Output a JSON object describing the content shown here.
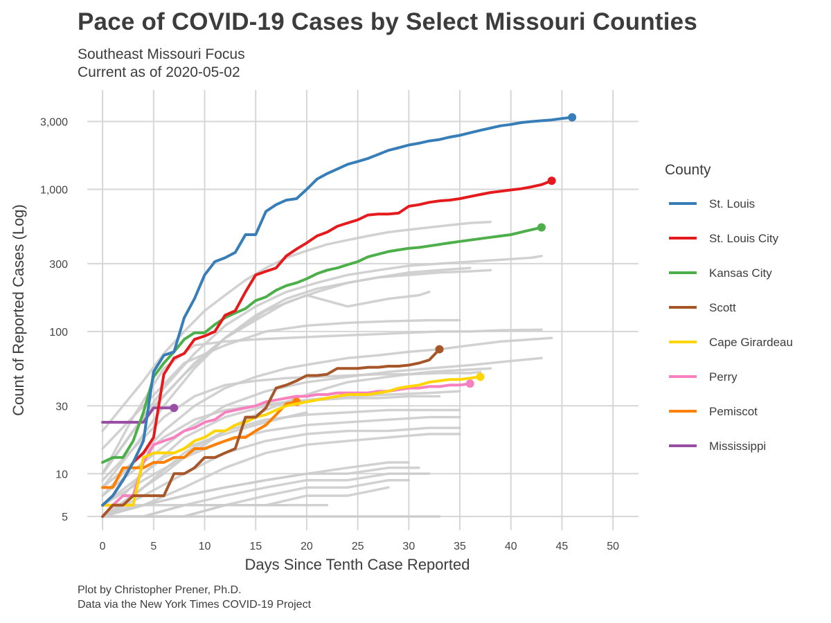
{
  "header": {
    "title": "Pace of COVID-19 Cases by Select Missouri Counties",
    "subtitle_line1": "Southeast Missouri Focus",
    "subtitle_line2": "Current as of 2020-05-02"
  },
  "footer": {
    "caption_line1": "Plot by Christopher Prener, Ph.D.",
    "caption_line2": "Data via the New York Times COVID-19 Project"
  },
  "colors": {
    "background_lines": "#cccccc",
    "grid": "#d6d6d6"
  },
  "chart_data": {
    "type": "line",
    "title": "Pace of COVID-19 Cases by Select Missouri Counties",
    "xlabel": "Days Since Tenth Case Reported",
    "ylabel": "Count of Reported Cases (Log)",
    "yscale": "log",
    "xlim": [
      -1.5,
      52.5
    ],
    "ylim": [
      4,
      5000
    ],
    "x_ticks": [
      0,
      5,
      10,
      15,
      20,
      25,
      30,
      35,
      40,
      45,
      50
    ],
    "x_tick_labels": [
      "0",
      "5",
      "10",
      "15",
      "20",
      "25",
      "30",
      "35",
      "40",
      "45",
      "50"
    ],
    "y_ticks": [
      5,
      10,
      30,
      100,
      300,
      1000,
      3000
    ],
    "y_tick_labels": [
      "5",
      "10",
      "30",
      "100",
      "300",
      "1,000",
      "3,000"
    ],
    "legend_title": "County",
    "series": [
      {
        "name": "St. Louis",
        "color": "#377eb8",
        "x": [
          0,
          1,
          2,
          3,
          4,
          5,
          6,
          7,
          8,
          9,
          10,
          11,
          12,
          13,
          14,
          15,
          16,
          17,
          18,
          19,
          20,
          21,
          22,
          23,
          24,
          25,
          26,
          27,
          28,
          29,
          30,
          31,
          32,
          33,
          34,
          35,
          36,
          37,
          38,
          39,
          40,
          41,
          42,
          43,
          44,
          45,
          46
        ],
        "y": [
          6,
          7,
          9,
          12,
          17,
          52,
          68,
          72,
          125,
          170,
          250,
          310,
          330,
          360,
          480,
          480,
          700,
          780,
          840,
          860,
          1000,
          1180,
          1290,
          1390,
          1500,
          1570,
          1650,
          1760,
          1880,
          1960,
          2050,
          2110,
          2190,
          2240,
          2330,
          2400,
          2500,
          2600,
          2700,
          2800,
          2860,
          2950,
          3000,
          3040,
          3080,
          3150,
          3210
        ]
      },
      {
        "name": "St. Louis City",
        "color": "#e41a1c",
        "x": [
          0,
          1,
          2,
          3,
          4,
          5,
          6,
          7,
          8,
          9,
          10,
          11,
          12,
          13,
          14,
          15,
          16,
          17,
          18,
          19,
          20,
          21,
          22,
          23,
          24,
          25,
          26,
          27,
          28,
          29,
          30,
          31,
          32,
          33,
          34,
          35,
          36,
          37,
          38,
          39,
          40,
          41,
          42,
          43,
          44
        ],
        "y": [
          6,
          7,
          9,
          12,
          14,
          18,
          50,
          65,
          70,
          88,
          93,
          100,
          130,
          140,
          190,
          250,
          265,
          280,
          340,
          380,
          420,
          470,
          500,
          550,
          580,
          610,
          660,
          670,
          670,
          680,
          760,
          780,
          810,
          830,
          840,
          860,
          890,
          920,
          950,
          970,
          990,
          1010,
          1040,
          1080,
          1150
        ]
      },
      {
        "name": "Kansas City",
        "color": "#4daf4a",
        "x": [
          0,
          1,
          2,
          3,
          4,
          5,
          6,
          7,
          8,
          9,
          10,
          11,
          12,
          13,
          14,
          15,
          16,
          17,
          18,
          19,
          20,
          21,
          22,
          23,
          24,
          25,
          26,
          27,
          28,
          29,
          30,
          31,
          32,
          33,
          34,
          35,
          36,
          37,
          38,
          39,
          40,
          41,
          42,
          43
        ],
        "y": [
          12,
          13,
          13,
          17,
          27,
          48,
          60,
          72,
          88,
          98,
          98,
          112,
          125,
          135,
          145,
          165,
          175,
          195,
          210,
          220,
          235,
          255,
          270,
          280,
          295,
          310,
          335,
          350,
          365,
          375,
          385,
          390,
          400,
          410,
          420,
          430,
          440,
          450,
          460,
          470,
          480,
          500,
          520,
          540
        ]
      },
      {
        "name": "Scott",
        "color": "#a65628",
        "x": [
          0,
          1,
          2,
          3,
          4,
          5,
          6,
          7,
          8,
          9,
          10,
          11,
          12,
          13,
          14,
          15,
          16,
          17,
          18,
          19,
          20,
          21,
          22,
          23,
          24,
          25,
          26,
          27,
          28,
          29,
          30,
          31,
          32,
          33
        ],
        "y": [
          5,
          6,
          6,
          7,
          7,
          7,
          7,
          10,
          10,
          11,
          13,
          13,
          14,
          15,
          25,
          25,
          29,
          40,
          42,
          45,
          49,
          49,
          50,
          55,
          55,
          55,
          56,
          56,
          57,
          57,
          58,
          60,
          63,
          75
        ]
      },
      {
        "name": "Cape Girardeau",
        "color": "#ffd500",
        "x": [
          0,
          1,
          2,
          3,
          4,
          5,
          6,
          7,
          8,
          9,
          10,
          11,
          12,
          13,
          14,
          15,
          16,
          17,
          18,
          19,
          20,
          21,
          22,
          23,
          24,
          25,
          26,
          27,
          28,
          29,
          30,
          31,
          32,
          33,
          34,
          35,
          36,
          37
        ],
        "y": [
          6,
          6,
          6,
          6,
          13,
          14,
          14,
          14,
          15,
          17,
          18,
          20,
          20,
          22,
          23,
          25,
          26,
          28,
          30,
          31,
          32,
          33,
          34,
          35,
          36,
          36,
          36,
          37,
          38,
          40,
          41,
          42,
          44,
          45,
          46,
          46,
          47,
          48
        ]
      },
      {
        "name": "Perry",
        "color": "#f781bf",
        "x": [
          0,
          1,
          2,
          3,
          4,
          5,
          6,
          7,
          8,
          9,
          10,
          11,
          12,
          13,
          14,
          15,
          16,
          17,
          18,
          19,
          20,
          21,
          22,
          23,
          24,
          25,
          26,
          27,
          28,
          29,
          30,
          31,
          32,
          33,
          34,
          35,
          36
        ],
        "y": [
          6,
          6,
          7,
          7,
          12,
          16,
          17,
          18,
          20,
          21,
          23,
          24,
          27,
          28,
          29,
          30,
          32,
          33,
          34,
          35,
          35,
          36,
          36,
          37,
          37,
          37,
          37,
          38,
          38,
          39,
          40,
          40,
          41,
          41,
          42,
          42,
          43
        ]
      },
      {
        "name": "Pemiscot",
        "color": "#ff7f00",
        "x": [
          0,
          1,
          2,
          3,
          4,
          5,
          6,
          7,
          8,
          9,
          10,
          11,
          12,
          13,
          14,
          15,
          16,
          17,
          18,
          19
        ],
        "y": [
          8,
          8,
          11,
          11,
          11,
          12,
          12,
          13,
          13,
          15,
          15,
          16,
          17,
          18,
          18,
          20,
          22,
          26,
          31,
          32
        ]
      },
      {
        "name": "Mississippi",
        "color": "#984ea3",
        "x": [
          0,
          1,
          2,
          3,
          4,
          5,
          6,
          7
        ],
        "y": [
          23,
          23,
          23,
          23,
          23,
          29,
          29,
          29
        ]
      }
    ],
    "background_series": [
      {
        "x": [
          0,
          2,
          4,
          6,
          8,
          10,
          12,
          14,
          16,
          18,
          20,
          22,
          24,
          26,
          28,
          30,
          32,
          34,
          36,
          38
        ],
        "y": [
          20,
          30,
          45,
          70,
          100,
          140,
          180,
          230,
          280,
          330,
          370,
          410,
          440,
          470,
          500,
          520,
          540,
          560,
          580,
          590
        ]
      },
      {
        "x": [
          0,
          3,
          6,
          9,
          12,
          15,
          18,
          21,
          24,
          27,
          30,
          33,
          36,
          39,
          42,
          43
        ],
        "y": [
          10,
          20,
          40,
          70,
          110,
          150,
          190,
          220,
          250,
          270,
          290,
          300,
          310,
          320,
          330,
          340
        ]
      },
      {
        "x": [
          0,
          3,
          6,
          9,
          12,
          15,
          18,
          21,
          24,
          27,
          30,
          33,
          36,
          38
        ],
        "y": [
          9,
          15,
          30,
          55,
          90,
          130,
          170,
          200,
          220,
          240,
          250,
          260,
          265,
          270
        ]
      },
      {
        "x": [
          0,
          3,
          6,
          9,
          12,
          15,
          18,
          21,
          24,
          27,
          30,
          33,
          36
        ],
        "y": [
          10,
          20,
          35,
          60,
          90,
          120,
          160,
          190,
          220,
          240,
          260,
          270,
          280
        ]
      },
      {
        "x": [
          0,
          4,
          8,
          12,
          16,
          20,
          24,
          28,
          31,
          32
        ],
        "y": [
          10,
          25,
          50,
          90,
          140,
          180,
          150,
          170,
          180,
          190
        ]
      },
      {
        "x": [
          0,
          4,
          8,
          12,
          16,
          20,
          24,
          28,
          32,
          35
        ],
        "y": [
          15,
          30,
          60,
          80,
          100,
          110,
          115,
          118,
          120,
          120
        ]
      },
      {
        "x": [
          0,
          3,
          6,
          9,
          12,
          15,
          18,
          21,
          24,
          27,
          30,
          33,
          36,
          39,
          43
        ],
        "y": [
          10,
          25,
          55,
          80,
          85,
          88,
          90,
          92,
          94,
          96,
          98,
          100,
          100,
          102,
          103
        ]
      },
      {
        "x": [
          0,
          3,
          6,
          9,
          12,
          15,
          18,
          21,
          24,
          27,
          30,
          33,
          36,
          39,
          42,
          44
        ],
        "y": [
          8,
          12,
          20,
          30,
          40,
          48,
          55,
          60,
          65,
          68,
          72,
          75,
          80,
          85,
          88,
          90
        ]
      },
      {
        "x": [
          0,
          4,
          8,
          12,
          16,
          20,
          24,
          28,
          32,
          36,
          40,
          43
        ],
        "y": [
          7,
          12,
          20,
          30,
          38,
          44,
          48,
          52,
          55,
          58,
          62,
          65
        ]
      },
      {
        "x": [
          0,
          3,
          6,
          9,
          12,
          15,
          18,
          21,
          24,
          27,
          30,
          33,
          36,
          37
        ],
        "y": [
          8,
          15,
          25,
          35,
          42,
          45,
          47,
          48,
          49,
          50,
          50,
          51,
          51,
          52
        ]
      },
      {
        "x": [
          0,
          4,
          8,
          12,
          16,
          20,
          24,
          28,
          32,
          35
        ],
        "y": [
          6,
          10,
          18,
          25,
          30,
          33,
          35,
          36,
          37,
          38
        ]
      },
      {
        "x": [
          0,
          3,
          6,
          9,
          12,
          15,
          18,
          21,
          24,
          27,
          30,
          33
        ],
        "y": [
          7,
          12,
          18,
          24,
          28,
          30,
          32,
          33,
          34,
          34,
          35,
          35
        ]
      },
      {
        "x": [
          0,
          4,
          8,
          12,
          16,
          20,
          24,
          28,
          32,
          35
        ],
        "y": [
          5,
          8,
          14,
          20,
          24,
          26,
          27,
          28,
          28,
          28
        ]
      },
      {
        "x": [
          0,
          4,
          8,
          12,
          16,
          20,
          24,
          28,
          32,
          35
        ],
        "y": [
          6,
          9,
          13,
          17,
          20,
          22,
          23,
          24,
          25,
          25
        ]
      },
      {
        "x": [
          0,
          4,
          8,
          12,
          16,
          20,
          24,
          28,
          32,
          35
        ],
        "y": [
          5,
          7,
          10,
          14,
          17,
          19,
          20,
          20,
          21,
          21
        ]
      },
      {
        "x": [
          0,
          4,
          8,
          12,
          16,
          20,
          24,
          28,
          32,
          35
        ],
        "y": [
          5,
          6,
          8,
          11,
          14,
          16,
          17,
          18,
          19,
          19
        ]
      },
      {
        "x": [
          0,
          4,
          8,
          12,
          16,
          20,
          24,
          28,
          30
        ],
        "y": [
          5,
          6,
          7,
          8,
          9,
          10,
          11,
          12,
          12
        ]
      },
      {
        "x": [
          0,
          4,
          8,
          12,
          16,
          20,
          24,
          28,
          31
        ],
        "y": [
          5,
          6,
          7,
          8,
          9,
          10,
          10,
          11,
          11
        ]
      },
      {
        "x": [
          0,
          4,
          8,
          12,
          16,
          20,
          24,
          28,
          32
        ],
        "y": [
          5,
          5,
          6,
          7,
          8,
          9,
          9,
          10,
          10
        ]
      },
      {
        "x": [
          0,
          4,
          8,
          12,
          16,
          20,
          24,
          28,
          30
        ],
        "y": [
          5,
          5,
          6,
          6,
          7,
          8,
          8,
          9,
          9
        ]
      },
      {
        "x": [
          0,
          4,
          8,
          12,
          16,
          20,
          24,
          28
        ],
        "y": [
          5,
          5,
          5,
          6,
          6,
          7,
          7,
          8
        ]
      },
      {
        "x": [
          0,
          4,
          8,
          12,
          16,
          20,
          22
        ],
        "y": [
          5,
          5,
          5,
          6,
          6,
          6,
          6
        ]
      },
      {
        "x": [
          0,
          4,
          8,
          12,
          16,
          20,
          24,
          28,
          33
        ],
        "y": [
          5,
          5,
          5,
          5,
          5,
          5,
          5,
          5,
          5
        ]
      },
      {
        "x": [
          0,
          3,
          6,
          9,
          12,
          15,
          18
        ],
        "y": [
          5,
          6,
          6,
          6,
          6,
          6,
          6
        ]
      },
      {
        "x": [
          0,
          2,
          4,
          6,
          8,
          10,
          12,
          14,
          16,
          18,
          20
        ],
        "y": [
          5,
          7,
          10,
          13,
          15,
          17,
          19,
          21,
          23,
          25,
          27
        ]
      },
      {
        "x": [
          0,
          2,
          4,
          6,
          8,
          10,
          12,
          14,
          16,
          18,
          20,
          22,
          24,
          26,
          28,
          30,
          32,
          34,
          36,
          38
        ],
        "y": [
          5,
          6,
          8,
          10,
          13,
          16,
          20,
          24,
          28,
          32,
          36,
          40,
          44,
          46,
          48,
          50,
          52,
          53,
          54,
          55
        ]
      }
    ]
  }
}
